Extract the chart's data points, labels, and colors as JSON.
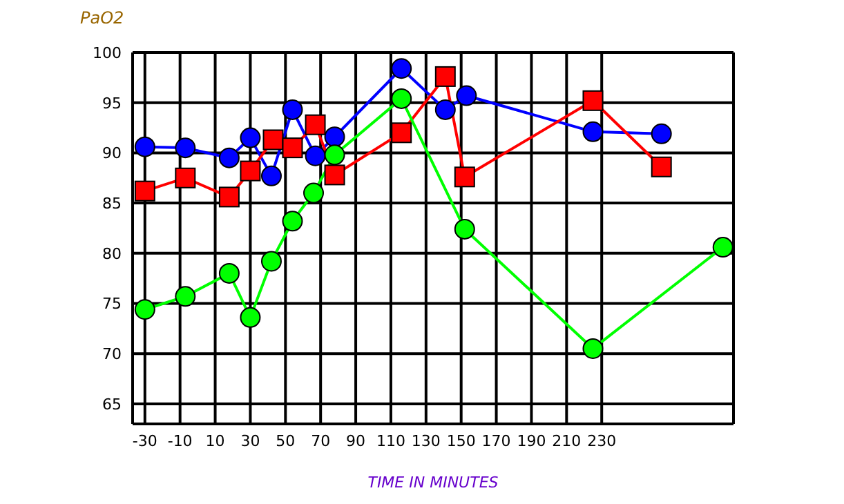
{
  "chart_data": {
    "type": "line",
    "title": "PaO2",
    "xlabel": "TIME IN MINUTES",
    "xlim": [
      -37,
      305
    ],
    "xticks": [
      -30,
      -10,
      10,
      30,
      50,
      70,
      90,
      110,
      130,
      150,
      170,
      190,
      210,
      230
    ],
    "ylim": [
      63,
      100
    ],
    "yticks": [
      65,
      70,
      75,
      80,
      85,
      90,
      95,
      100
    ],
    "grid": true,
    "legend": false,
    "series": [
      {
        "color": "#0000ff",
        "marker": "circle",
        "x": [
          -30,
          -7,
          18,
          30,
          42,
          54,
          67,
          78,
          116,
          141,
          153,
          225,
          264
        ],
        "values": [
          90.6,
          90.5,
          89.5,
          91.5,
          87.7,
          94.3,
          89.7,
          91.6,
          98.4,
          94.3,
          95.7,
          92.1,
          91.9
        ]
      },
      {
        "color": "#ff0000",
        "marker": "square",
        "x": [
          -30,
          -7,
          18,
          30,
          43,
          54,
          67,
          78,
          116,
          141,
          152,
          225,
          264
        ],
        "values": [
          86.2,
          87.5,
          85.6,
          88.2,
          91.3,
          90.5,
          92.8,
          87.8,
          92.0,
          97.6,
          87.6,
          95.2,
          88.6
        ]
      },
      {
        "color": "#00ff00",
        "marker": "circle",
        "x": [
          -30,
          -7,
          18,
          30,
          42,
          54,
          66,
          78,
          116,
          152,
          225,
          299
        ],
        "values": [
          74.4,
          75.7,
          78.0,
          73.6,
          79.2,
          83.2,
          86.0,
          89.8,
          95.4,
          82.4,
          70.5,
          80.6
        ]
      }
    ]
  }
}
